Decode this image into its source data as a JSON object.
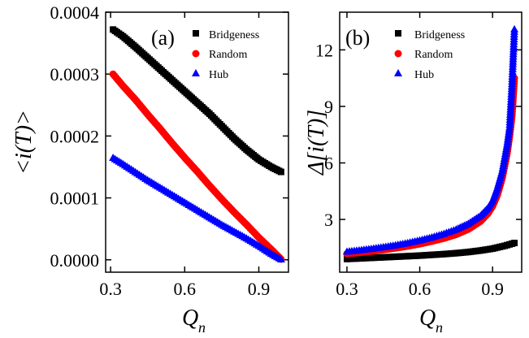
{
  "chart_data": [
    {
      "panel_label": "(a)",
      "type": "scatter",
      "xlabel": "Q",
      "xlabel_sub": "n",
      "ylabel": "<i(T)>",
      "xlim": [
        0.28,
        1.02
      ],
      "ylim": [
        -2e-05,
        0.0004
      ],
      "x_ticks": [
        0.3,
        0.6,
        0.9
      ],
      "x_tick_labels": [
        "0.3",
        "0.6",
        "0.9"
      ],
      "y_ticks": [
        0.0,
        0.0001,
        0.0002,
        0.0003,
        0.0004
      ],
      "y_tick_labels": [
        "0.0000",
        "0.0001",
        "0.0002",
        "0.0003",
        "0.0004"
      ],
      "legend_position": "top-right",
      "series": [
        {
          "name": "Bridgeness",
          "marker": "square",
          "color": "#000000",
          "points": [
            [
              0.31,
              0.000372
            ],
            [
              0.35,
              0.000361
            ],
            [
              0.4,
              0.000344
            ],
            [
              0.45,
              0.000326
            ],
            [
              0.5,
              0.000308
            ],
            [
              0.55,
              0.00029
            ],
            [
              0.6,
              0.000272
            ],
            [
              0.65,
              0.000254
            ],
            [
              0.7,
              0.000236
            ],
            [
              0.75,
              0.000216
            ],
            [
              0.8,
              0.000196
            ],
            [
              0.85,
              0.000178
            ],
            [
              0.9,
              0.000162
            ],
            [
              0.95,
              0.00015
            ],
            [
              0.99,
              0.000142
            ]
          ]
        },
        {
          "name": "Random",
          "marker": "circle",
          "color": "#ff0000",
          "points": [
            [
              0.31,
              0.0003
            ],
            [
              0.35,
              0.000281
            ],
            [
              0.4,
              0.000259
            ],
            [
              0.45,
              0.000235
            ],
            [
              0.5,
              0.000212
            ],
            [
              0.55,
              0.000188
            ],
            [
              0.6,
              0.000165
            ],
            [
              0.65,
              0.000143
            ],
            [
              0.7,
              0.00012
            ],
            [
              0.75,
              9.8e-05
            ],
            [
              0.8,
              7.7e-05
            ],
            [
              0.85,
              5.7e-05
            ],
            [
              0.9,
              3.6e-05
            ],
            [
              0.95,
              1.7e-05
            ],
            [
              0.99,
              1e-06
            ]
          ]
        },
        {
          "name": "Hub",
          "marker": "triangle",
          "color": "#0000ff",
          "points": [
            [
              0.31,
              0.000165
            ],
            [
              0.35,
              0.000155
            ],
            [
              0.4,
              0.000142
            ],
            [
              0.45,
              0.000129
            ],
            [
              0.5,
              0.000117
            ],
            [
              0.55,
              0.000105
            ],
            [
              0.6,
              9.3e-05
            ],
            [
              0.65,
              8.1e-05
            ],
            [
              0.7,
              6.9e-05
            ],
            [
              0.75,
              5.7e-05
            ],
            [
              0.8,
              4.6e-05
            ],
            [
              0.85,
              3.5e-05
            ],
            [
              0.9,
              2.3e-05
            ],
            [
              0.95,
              1e-05
            ],
            [
              0.99,
              1e-06
            ]
          ]
        }
      ]
    },
    {
      "panel_label": "(b)",
      "type": "scatter",
      "xlabel": "Q",
      "xlabel_sub": "n",
      "ylabel": "Δ[i(T)]",
      "xlim": [
        0.27,
        1.02
      ],
      "ylim": [
        0.2,
        14.0
      ],
      "x_ticks": [
        0.3,
        0.6,
        0.9
      ],
      "x_tick_labels": [
        "0.3",
        "0.6",
        "0.9"
      ],
      "y_ticks": [
        3,
        6,
        9,
        12
      ],
      "y_tick_labels": [
        "3",
        "6",
        "9",
        "12"
      ],
      "legend_position": "top-left",
      "series": [
        {
          "name": "Bridgeness",
          "marker": "square",
          "color": "#000000",
          "points": [
            [
              0.3,
              0.9
            ],
            [
              0.35,
              0.93
            ],
            [
              0.4,
              0.96
            ],
            [
              0.45,
              0.99
            ],
            [
              0.5,
              1.02
            ],
            [
              0.55,
              1.05
            ],
            [
              0.6,
              1.08
            ],
            [
              0.65,
              1.12
            ],
            [
              0.7,
              1.16
            ],
            [
              0.75,
              1.21
            ],
            [
              0.8,
              1.27
            ],
            [
              0.85,
              1.35
            ],
            [
              0.9,
              1.45
            ],
            [
              0.95,
              1.6
            ],
            [
              0.99,
              1.75
            ]
          ]
        },
        {
          "name": "Random",
          "marker": "circle",
          "color": "#ff0000",
          "points": [
            [
              0.3,
              1.18
            ],
            [
              0.35,
              1.24
            ],
            [
              0.4,
              1.31
            ],
            [
              0.45,
              1.39
            ],
            [
              0.5,
              1.48
            ],
            [
              0.55,
              1.58
            ],
            [
              0.6,
              1.7
            ],
            [
              0.65,
              1.84
            ],
            [
              0.7,
              2.0
            ],
            [
              0.75,
              2.2
            ],
            [
              0.8,
              2.48
            ],
            [
              0.85,
              2.9
            ],
            [
              0.88,
              3.3
            ],
            [
              0.9,
              3.7
            ],
            [
              0.92,
              4.3
            ],
            [
              0.94,
              5.2
            ],
            [
              0.96,
              6.5
            ],
            [
              0.97,
              7.4
            ],
            [
              0.98,
              8.5
            ],
            [
              0.99,
              10.5
            ]
          ]
        },
        {
          "name": "Hub",
          "marker": "triangle",
          "color": "#0000ff",
          "points": [
            [
              0.3,
              1.3
            ],
            [
              0.35,
              1.37
            ],
            [
              0.4,
              1.45
            ],
            [
              0.45,
              1.54
            ],
            [
              0.5,
              1.64
            ],
            [
              0.55,
              1.76
            ],
            [
              0.6,
              1.9
            ],
            [
              0.65,
              2.06
            ],
            [
              0.7,
              2.25
            ],
            [
              0.75,
              2.48
            ],
            [
              0.8,
              2.78
            ],
            [
              0.85,
              3.2
            ],
            [
              0.88,
              3.6
            ],
            [
              0.9,
              4.0
            ],
            [
              0.92,
              4.7
            ],
            [
              0.94,
              5.6
            ],
            [
              0.96,
              7.0
            ],
            [
              0.97,
              7.9
            ],
            [
              0.98,
              10.2
            ],
            [
              0.99,
              13.1
            ]
          ]
        }
      ]
    }
  ]
}
